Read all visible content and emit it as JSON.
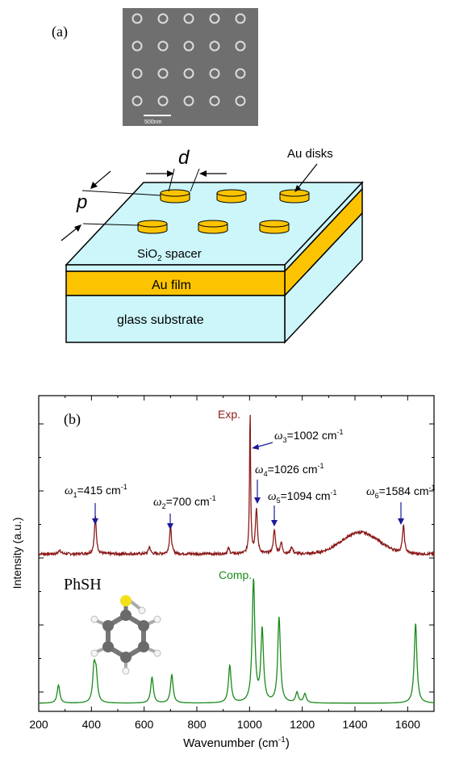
{
  "panel_a": {
    "label": "(a)",
    "sem_scale_bar": "500nm",
    "diagram": {
      "au_disks_label": "Au disks",
      "param_d": "d",
      "param_p": "p",
      "spacer_label": "SiO",
      "spacer_sub": "2",
      "spacer_suffix": " spacer",
      "film_label": "Au film",
      "substrate_label": "glass substrate"
    },
    "colors": {
      "spacer": "#ccf6fa",
      "gold": "#fcc400",
      "glass": "#ccf6fa"
    }
  },
  "panel_b": {
    "label": "(b)",
    "chart_data": {
      "type": "line",
      "xlabel": "Wavenumber (cm",
      "xlabel_sup": "-1",
      "xlabel_end": ")",
      "ylabel": "Intensity (a.u.)",
      "xlim": [
        200,
        1700
      ],
      "xticks": [
        "200",
        "400",
        "600",
        "800",
        "1000",
        "1200",
        "1400",
        "1600"
      ],
      "xtick_values": [
        200,
        400,
        600,
        800,
        1000,
        1200,
        1400,
        1600
      ],
      "series": [
        {
          "name": "Exp.",
          "color": "#8b1a1a",
          "baseline": 0.0,
          "peaks": [
            [
              280,
              0.03
            ],
            [
              415,
              0.26
            ],
            [
              620,
              0.05
            ],
            [
              700,
              0.19
            ],
            [
              920,
              0.04
            ],
            [
              1002,
              1.0
            ],
            [
              1026,
              0.31
            ],
            [
              1094,
              0.17
            ],
            [
              1120,
              0.08
            ],
            [
              1160,
              0.05
            ],
            [
              1584,
              0.19
            ]
          ],
          "bumps": [
            [
              1420,
              70,
              0.15
            ]
          ]
        },
        {
          "name": "Comp.",
          "color": "#1a8a1a",
          "peaks": [
            [
              275,
              0.14
            ],
            [
              410,
              0.26
            ],
            [
              418,
              0.2
            ],
            [
              630,
              0.2
            ],
            [
              705,
              0.22
            ],
            [
              925,
              0.29
            ],
            [
              1015,
              0.95
            ],
            [
              1048,
              0.56
            ],
            [
              1112,
              0.66
            ],
            [
              1180,
              0.08
            ],
            [
              1210,
              0.07
            ],
            [
              1630,
              0.62
            ]
          ]
        }
      ],
      "annotations": [
        {
          "sym": "ω",
          "sub": "1",
          "text": "=415 cm",
          "sup": "-1",
          "x": 415
        },
        {
          "sym": "ω",
          "sub": "2",
          "text": "=700 cm",
          "sup": "-1",
          "x": 700
        },
        {
          "sym": "ω",
          "sub": "3",
          "text": "=1002 cm",
          "sup": "-1",
          "x": 1002
        },
        {
          "sym": "ω",
          "sub": "4",
          "text": "=1026 cm",
          "sup": "-1",
          "x": 1026
        },
        {
          "sym": "ω",
          "sub": "5",
          "text": "=1094 cm",
          "sup": "-1",
          "x": 1094
        },
        {
          "sym": "ω",
          "sub": "6",
          "text": "=1584 cm",
          "sup": "-1",
          "x": 1584
        }
      ],
      "molecule_label": "PhSH",
      "grid": false
    }
  }
}
